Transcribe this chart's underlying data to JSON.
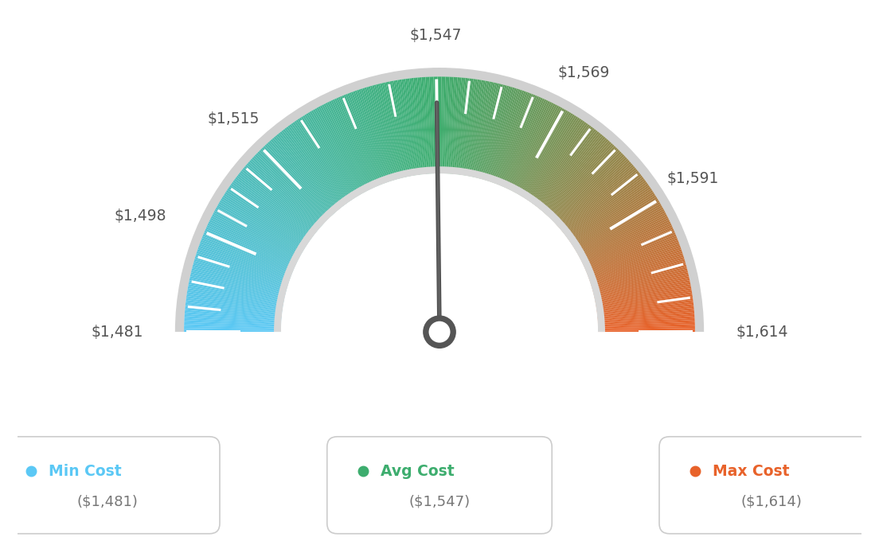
{
  "min_val": 1481,
  "max_val": 1614,
  "avg_val": 1547,
  "tick_labels": [
    "$1,481",
    "$1,498",
    "$1,515",
    "$1,547",
    "$1,569",
    "$1,591",
    "$1,614"
  ],
  "tick_values": [
    1481,
    1498,
    1515,
    1547,
    1569,
    1591,
    1614
  ],
  "legend_labels": [
    "Min Cost",
    "Avg Cost",
    "Max Cost"
  ],
  "legend_values": [
    "($1,481)",
    "($1,547)",
    "($1,614)"
  ],
  "legend_colors": [
    "#5BC8F5",
    "#3DAD6E",
    "#E8622A"
  ],
  "color_blue": "#5BC8F5",
  "color_green": "#3DAD6E",
  "color_orange": "#E8622A",
  "background": "#ffffff",
  "gauge_outer_r": 1.0,
  "gauge_inner_r": 0.62,
  "outer_border_color": "#D0D0D0",
  "inner_rim_color": "#D8D8D8",
  "needle_color": "#555555",
  "label_color": "#555555",
  "value_color": "#777777"
}
